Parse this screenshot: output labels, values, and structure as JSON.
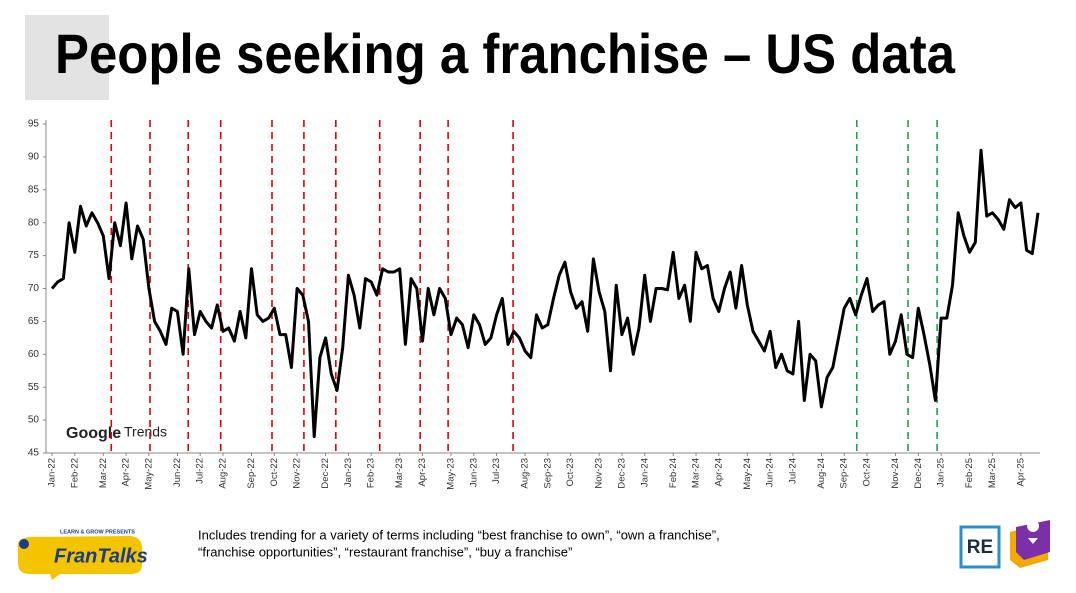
{
  "title": "People seeking a franchise – US data",
  "note_lines": [
    "Includes trending for a variety of terms including “best franchise to own”, “own a franchise”,",
    "“franchise opportunities”, “restaurant franchise”, “buy a franchise”"
  ],
  "logo_left": {
    "presents": "LEARN & GROW PRESENTS",
    "brand": "FranTalks"
  },
  "logo_right": "RE",
  "chart_data": {
    "type": "line",
    "watermark": [
      "Google",
      "Trends"
    ],
    "categories": [
      "Jan-22",
      null,
      null,
      null,
      "Feb-22",
      null,
      null,
      null,
      null,
      "Mar-22",
      null,
      null,
      null,
      "Apr-22",
      null,
      null,
      null,
      "May-22",
      null,
      null,
      null,
      null,
      "Jun-22",
      null,
      null,
      null,
      "Jul-22",
      null,
      null,
      null,
      "Aug-22",
      null,
      null,
      null,
      null,
      "Sep-22",
      null,
      null,
      null,
      "Oct-22",
      null,
      null,
      null,
      "Nov-22",
      null,
      null,
      null,
      null,
      "Dec-22",
      null,
      null,
      null,
      "Jan-23",
      null,
      null,
      null,
      "Feb-23",
      null,
      null,
      null,
      null,
      "Mar-23",
      null,
      null,
      null,
      "Apr-23",
      null,
      null,
      null,
      null,
      "May-23",
      null,
      null,
      null,
      "Jun-23",
      null,
      null,
      null,
      "Jul-23",
      null,
      null,
      null,
      null,
      "Aug-23",
      null,
      null,
      null,
      "Sep-23",
      null,
      null,
      null,
      "Oct-23",
      null,
      null,
      null,
      null,
      "Nov-23",
      null,
      null,
      null,
      "Dec-23",
      null,
      null,
      null,
      "Jan-24",
      null,
      null,
      null,
      null,
      "Feb-24",
      null,
      null,
      null,
      "Mar-24",
      null,
      null,
      null,
      "Apr-24",
      null,
      null,
      null,
      null,
      "May-24",
      null,
      null,
      null,
      "Jun-24",
      null,
      null,
      null,
      "Jul-24",
      null,
      null,
      null,
      null,
      "Aug-24",
      null,
      null,
      null,
      "Sep-24",
      null,
      null,
      null,
      "Oct-24",
      null,
      null,
      null,
      null,
      "Nov-24",
      null,
      null,
      null,
      "Dec-24",
      null,
      null,
      null,
      "Jan-25",
      null,
      null,
      null,
      null,
      "Feb-25",
      null,
      null,
      null,
      "Mar-25",
      null,
      null,
      null,
      null,
      "Apr-25",
      null,
      null,
      null
    ],
    "series": [
      {
        "color": "#000000",
        "values": [
          70,
          71,
          71.5,
          80,
          75.5,
          82.5,
          79.5,
          81.5,
          80,
          78,
          71.5,
          80,
          76.5,
          83,
          74.5,
          79.5,
          77.5,
          70,
          65,
          63.5,
          61.5,
          67,
          66.5,
          60,
          73,
          63,
          66.5,
          65,
          64,
          67.5,
          63.5,
          64,
          62,
          66.5,
          62.5,
          73,
          66,
          65,
          65.5,
          67,
          63,
          63,
          58,
          70,
          69,
          65,
          47.5,
          59.5,
          62.5,
          57,
          54.5,
          61,
          72,
          69,
          64,
          71.5,
          71,
          69,
          73,
          72.5,
          72.5,
          73,
          61.5,
          71.5,
          70,
          62,
          70,
          66,
          70,
          68.5,
          63,
          65.5,
          64.5,
          61,
          66,
          64.5,
          61.5,
          62.5,
          66,
          68.5,
          61.5,
          63.5,
          62.5,
          60.5,
          59.5,
          66,
          64,
          64.5,
          68.5,
          72,
          74,
          69.5,
          67,
          68,
          63.5,
          74.5,
          69.5,
          66.5,
          57.5,
          70.5,
          63,
          65.5,
          60,
          64,
          72,
          65,
          70,
          70,
          69.8,
          75.5,
          68.5,
          70.5,
          65,
          75.5,
          73,
          73.5,
          68.5,
          66.5,
          70,
          72.5,
          67,
          73.5,
          67.5,
          63.5,
          62,
          60.5,
          63.5,
          58,
          60,
          57.5,
          57,
          65,
          53,
          60,
          59,
          52,
          56.5,
          58,
          62.5,
          67,
          68.5,
          66,
          69,
          71.5,
          66.5,
          67.5,
          68,
          60,
          62,
          66,
          60,
          59.5,
          67,
          63,
          58.5,
          53,
          65.5,
          65.5,
          70.5,
          81.5,
          78,
          75.5,
          77,
          91,
          81,
          81.5,
          80.5,
          79,
          83.5,
          82.3,
          83,
          75.8,
          75.3,
          81.5
        ]
      }
    ],
    "markers": [
      {
        "x": 10.4,
        "color": "#e00000"
      },
      {
        "x": 17.2,
        "color": "#e00000"
      },
      {
        "x": 23.9,
        "color": "#e00000"
      },
      {
        "x": 29.6,
        "color": "#e00000"
      },
      {
        "x": 38.6,
        "color": "#e00000"
      },
      {
        "x": 44.2,
        "color": "#e00000"
      },
      {
        "x": 49.8,
        "color": "#e00000"
      },
      {
        "x": 57.5,
        "color": "#e00000"
      },
      {
        "x": 64.6,
        "color": "#e00000"
      },
      {
        "x": 69.5,
        "color": "#e00000"
      },
      {
        "x": 80.9,
        "color": "#e00000"
      },
      {
        "x": 141.2,
        "color": "#1aa34a"
      },
      {
        "x": 150.2,
        "color": "#1aa34a"
      },
      {
        "x": 155.3,
        "color": "#1aa34a"
      }
    ],
    "ylim": [
      45,
      95
    ],
    "yticks": [
      45,
      50,
      55,
      60,
      65,
      70,
      75,
      80,
      85,
      90,
      95
    ]
  }
}
